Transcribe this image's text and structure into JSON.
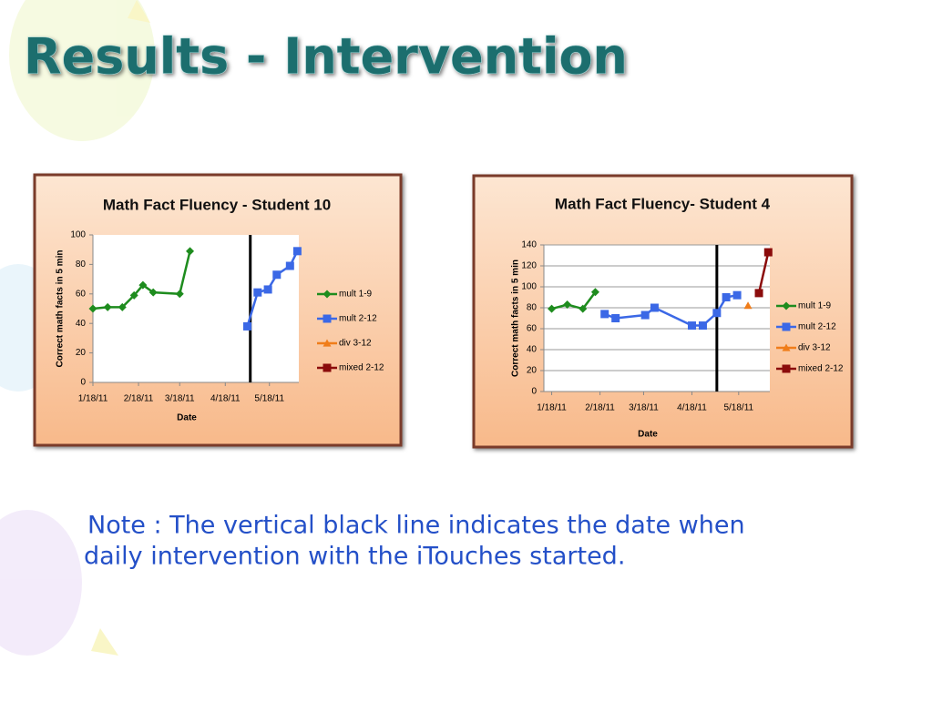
{
  "title": "Results - Intervention",
  "note": [
    "Note :  The vertical black line indicates the date when",
    "daily intervention with the iTouches started."
  ],
  "chart_data": [
    {
      "type": "line",
      "title": "Math Fact Fluency - Student 10",
      "x_label": "Date",
      "y_label": "Correct math facts in 5 min",
      "xlim": [
        "1/18/11",
        "6/7/11"
      ],
      "xticks": [
        "1/18/11",
        "2/18/11",
        "3/18/11",
        "4/18/11",
        "5/18/11"
      ],
      "ylim": [
        0,
        100
      ],
      "yticks": [
        0,
        20,
        40,
        60,
        80,
        100
      ],
      "grid": false,
      "legend": "right",
      "intervention_x": "5/5/11",
      "series": [
        {
          "name": "mult 1-9",
          "color": "#1e8c1e",
          "marker": "diamond",
          "x": [
            "1/18/11",
            "1/28/11",
            "2/7/11",
            "2/15/11",
            "2/21/11",
            "2/28/11",
            "3/18/11",
            "3/25/11"
          ],
          "values": [
            50,
            51,
            51,
            59,
            66,
            61,
            60,
            89
          ]
        },
        {
          "name": "mult 2-12",
          "color": "#3b68e6",
          "marker": "square",
          "x": [
            "5/3/11",
            "5/10/11",
            "5/17/11",
            "5/23/11",
            "6/1/11",
            "6/6/11"
          ],
          "values": [
            38,
            61,
            63,
            73,
            79,
            89
          ]
        },
        {
          "name": "div 3-12",
          "color": "#f07d1a",
          "marker": "triangle",
          "x": [],
          "values": []
        },
        {
          "name": "mixed 2-12",
          "color": "#8b0c0c",
          "marker": "square",
          "x": [],
          "values": []
        }
      ]
    },
    {
      "type": "line",
      "title": "Math Fact Fluency- Student 4",
      "x_label": "Date",
      "y_label": "Correct math facts in 5 min",
      "xlim": [
        "1/13/11",
        "6/7/11"
      ],
      "xticks": [
        "1/18/11",
        "2/18/11",
        "3/18/11",
        "4/18/11",
        "5/18/11"
      ],
      "ylim": [
        0,
        140
      ],
      "yticks": [
        0,
        20,
        40,
        60,
        80,
        100,
        120,
        140
      ],
      "grid": true,
      "legend": "right",
      "intervention_x": "5/4/11",
      "series": [
        {
          "name": "mult 1-9",
          "color": "#1e8c1e",
          "marker": "diamond",
          "x": [
            "1/18/11",
            "1/28/11",
            "2/7/11",
            "2/15/11"
          ],
          "values": [
            79,
            83,
            79,
            95
          ]
        },
        {
          "name": "mult 2-12",
          "color": "#3b68e6",
          "marker": "square",
          "x": [
            "2/21/11",
            "2/28/11",
            "3/19/11",
            "3/25/11",
            "4/18/11",
            "4/25/11",
            "5/4/11",
            "5/10/11",
            "5/17/11"
          ],
          "values": [
            74,
            70,
            73,
            80,
            63,
            63,
            75,
            90,
            92
          ]
        },
        {
          "name": "div 3-12",
          "color": "#f07d1a",
          "marker": "triangle",
          "x": [
            "5/24/11"
          ],
          "values": [
            82
          ]
        },
        {
          "name": "mixed 2-12",
          "color": "#8b0c0c",
          "marker": "square",
          "x": [
            "5/31/11",
            "6/6/11"
          ],
          "values": [
            94,
            133
          ]
        }
      ]
    }
  ]
}
